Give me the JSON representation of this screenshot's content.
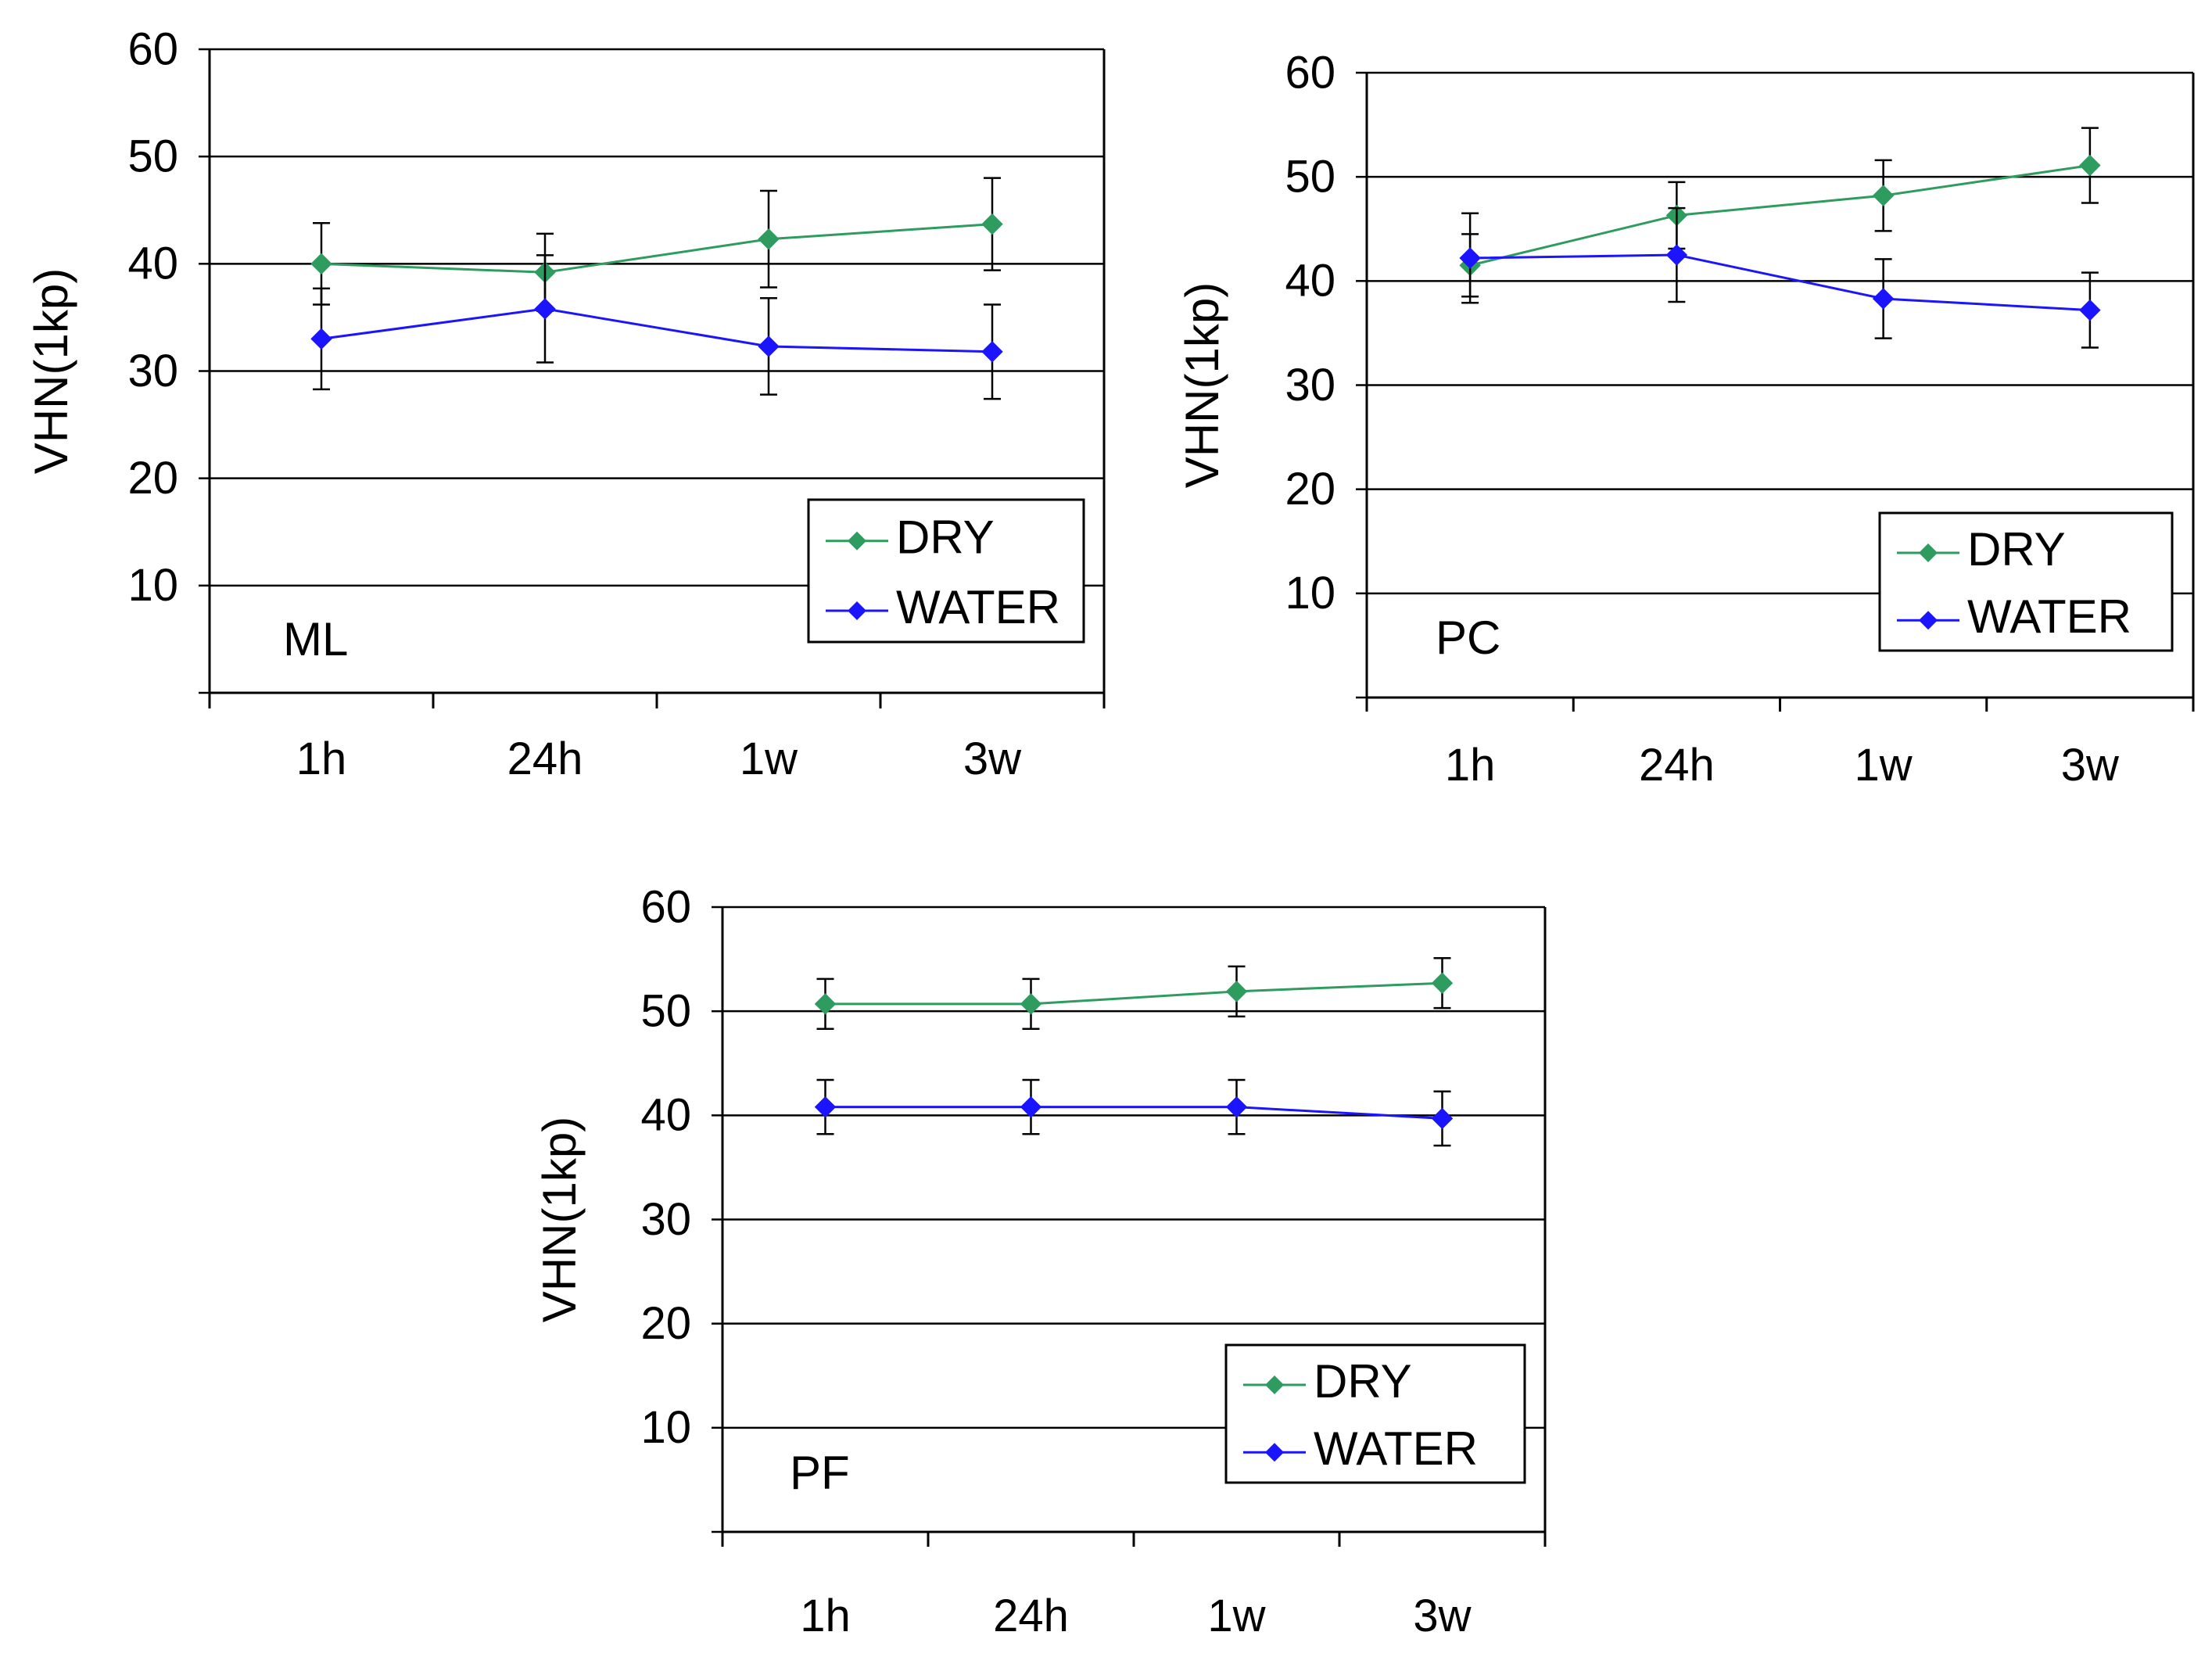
{
  "figure": {
    "colors": {
      "dry": "#2e9b5f",
      "water": "#1a14ff",
      "grid": "#000000"
    }
  },
  "chart_data": [
    {
      "type": "line",
      "panel_label": "ML",
      "ylabel": "VHN(1kp)",
      "categories": [
        "1h",
        "24h",
        "1w",
        "3w"
      ],
      "ylim": [
        0,
        60
      ],
      "yticks": [
        60,
        50,
        40,
        30,
        20,
        10
      ],
      "grid": true,
      "legend_position": "bottom-right",
      "series": [
        {
          "name": "DRY",
          "values": [
            40,
            39.2,
            42.3,
            43.7
          ],
          "errors": [
            3.8,
            3.6,
            4.5,
            4.3
          ]
        },
        {
          "name": "WATER",
          "values": [
            33,
            35.8,
            32.3,
            31.8
          ],
          "errors": [
            4.7,
            5.0,
            4.5,
            4.4
          ]
        }
      ]
    },
    {
      "type": "line",
      "panel_label": "PC",
      "ylabel": "VHN(1kp)",
      "categories": [
        "1h",
        "24h",
        "1w",
        "3w"
      ],
      "ylim": [
        0,
        60
      ],
      "yticks": [
        60,
        50,
        40,
        30,
        20,
        10
      ],
      "grid": true,
      "legend_position": "bottom-right",
      "series": [
        {
          "name": "DRY",
          "values": [
            41.5,
            46.3,
            48.2,
            51.1
          ],
          "errors": [
            3.0,
            3.2,
            3.4,
            3.6
          ]
        },
        {
          "name": "WATER",
          "values": [
            42.2,
            42.5,
            38.3,
            37.2
          ],
          "errors": [
            4.3,
            4.5,
            3.8,
            3.6
          ]
        }
      ]
    },
    {
      "type": "line",
      "panel_label": "PF",
      "ylabel": "VHN(1kp)",
      "categories": [
        "1h",
        "24h",
        "1w",
        "3w"
      ],
      "ylim": [
        0,
        60
      ],
      "yticks": [
        60,
        50,
        40,
        30,
        20,
        10
      ],
      "grid": true,
      "legend_position": "bottom-right",
      "series": [
        {
          "name": "DRY",
          "values": [
            50.7,
            50.7,
            51.9,
            52.7
          ],
          "errors": [
            2.4,
            2.4,
            2.4,
            2.4
          ]
        },
        {
          "name": "WATER",
          "values": [
            40.8,
            40.8,
            40.8,
            39.7
          ],
          "errors": [
            2.6,
            2.6,
            2.6,
            2.6
          ]
        }
      ]
    }
  ]
}
